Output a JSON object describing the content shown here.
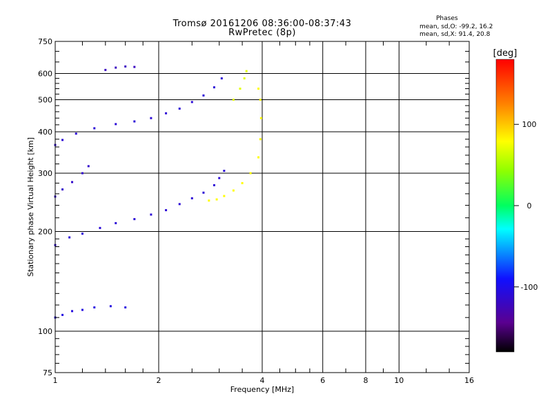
{
  "chart_data": {
    "type": "scatter",
    "title": "Tromsø 20161206 08:36:00-08:37:43",
    "subtitle": "RwPretec (8p)",
    "xlabel": "Frequency [MHz]",
    "ylabel": "Stationary phase Virtual Height [km]",
    "x_scale": "log",
    "y_scale": "log",
    "xlim": [
      1,
      16
    ],
    "ylim": [
      75,
      750
    ],
    "x_ticks": [
      1,
      2,
      4,
      6,
      8,
      10,
      16
    ],
    "y_ticks": [
      75,
      100,
      200,
      300,
      400,
      500,
      600,
      750
    ],
    "grid": true,
    "phase_stats": {
      "title": "Phases",
      "o_line": "mean, sd,O: -99.2, 16.2",
      "x_line": "mean, sd,X:  91.4, 20.8"
    },
    "colorbar": {
      "label": "[deg]",
      "range": [
        -180,
        180
      ],
      "ticks": [
        100,
        0,
        -100
      ]
    },
    "series": [
      {
        "phase_deg": -110,
        "trace": [
          [
            1.0,
            182
          ],
          [
            1.1,
            192
          ],
          [
            1.2,
            197
          ],
          [
            1.35,
            205
          ],
          [
            1.5,
            212
          ],
          [
            1.7,
            218
          ],
          [
            1.9,
            225
          ],
          [
            2.1,
            232
          ],
          [
            2.3,
            242
          ],
          [
            2.5,
            252
          ],
          [
            2.7,
            262
          ],
          [
            2.9,
            276
          ],
          [
            3.0,
            290
          ],
          [
            3.1,
            305
          ]
        ]
      },
      {
        "phase_deg": -110,
        "trace": [
          [
            1.0,
            365
          ],
          [
            1.05,
            378
          ],
          [
            1.15,
            395
          ],
          [
            1.3,
            410
          ],
          [
            1.5,
            422
          ],
          [
            1.7,
            430
          ],
          [
            1.9,
            440
          ],
          [
            2.1,
            455
          ],
          [
            2.3,
            470
          ],
          [
            2.5,
            492
          ],
          [
            2.7,
            515
          ],
          [
            2.9,
            545
          ],
          [
            3.05,
            580
          ]
        ]
      },
      {
        "phase_deg": -115,
        "trace": [
          [
            1.0,
            255
          ],
          [
            1.05,
            268
          ],
          [
            1.12,
            282
          ],
          [
            1.2,
            300
          ],
          [
            1.25,
            315
          ]
        ]
      },
      {
        "phase_deg": -105,
        "trace": [
          [
            1.0,
            110
          ],
          [
            1.05,
            112
          ],
          [
            1.12,
            115
          ],
          [
            1.2,
            116
          ],
          [
            1.3,
            118
          ],
          [
            1.45,
            119
          ],
          [
            1.6,
            118
          ]
        ]
      },
      {
        "phase_deg": -120,
        "trace": [
          [
            1.4,
            615
          ],
          [
            1.5,
            625
          ],
          [
            1.6,
            630
          ],
          [
            1.7,
            628
          ]
        ]
      },
      {
        "phase_deg": 80,
        "trace": [
          [
            2.8,
            248
          ],
          [
            2.95,
            250
          ],
          [
            3.1,
            256
          ],
          [
            3.3,
            266
          ],
          [
            3.5,
            280
          ],
          [
            3.7,
            300
          ],
          [
            3.9,
            335
          ],
          [
            3.95,
            380
          ],
          [
            3.97,
            440
          ],
          [
            3.95,
            500
          ],
          [
            3.9,
            540
          ]
        ]
      },
      {
        "phase_deg": 70,
        "trace": [
          [
            3.3,
            500
          ],
          [
            3.45,
            540
          ],
          [
            3.55,
            580
          ],
          [
            3.6,
            610
          ]
        ]
      }
    ]
  }
}
